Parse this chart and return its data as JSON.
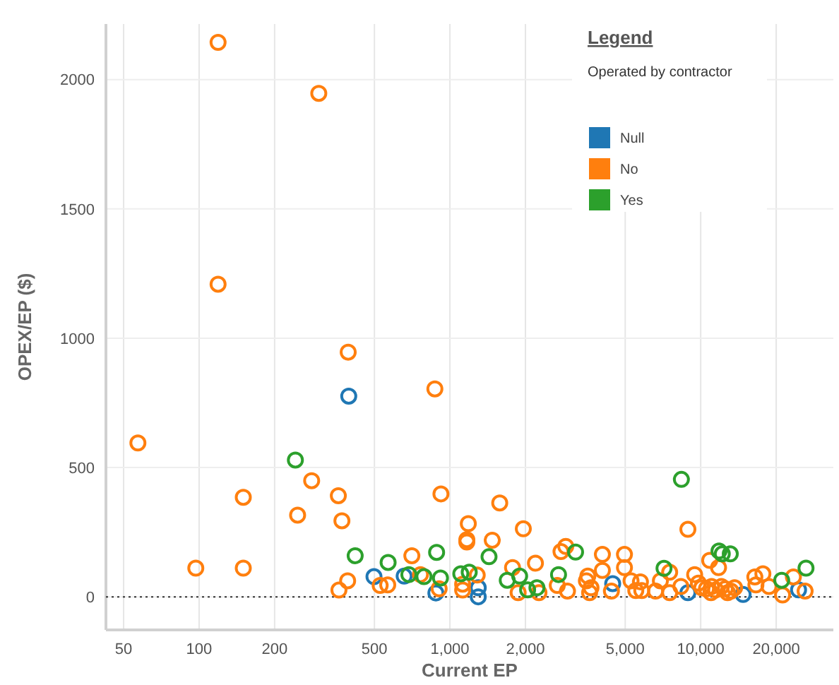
{
  "chart_data": {
    "type": "scatter",
    "xlabel": "Current EP",
    "ylabel": "OPEX/EP ($)",
    "legend_title": "Operated by contractor",
    "annotations": [
      "Legend"
    ],
    "log": "x",
    "grid": true,
    "legend": "top right",
    "marker": "circle",
    "xlim": [
      42.5,
      33800
    ],
    "ylim": [
      -128,
      2215
    ],
    "xticks": [
      50,
      100,
      200,
      500,
      {
        "value": 1000,
        "label": "1,000"
      },
      {
        "value": 2000,
        "label": "2,000"
      },
      {
        "value": 5000,
        "label": "5,000"
      },
      {
        "value": 10000,
        "label": "10,000"
      },
      {
        "value": 20000,
        "label": "20,000"
      }
    ],
    "yticks": [
      0,
      500,
      1000,
      1500,
      2000
    ],
    "ref_lines": [
      {
        "axis": "y",
        "value": 0,
        "label": null,
        "color": "#333333",
        "line_style": "dotted"
      }
    ],
    "series": [
      {
        "name": "Null",
        "color": "#1f77b4",
        "x": [
          395,
          498,
          657,
          879,
          1297,
          1297,
          4457,
          8890,
          14760,
          24560
        ],
        "values": [
          776,
          78,
          80,
          15,
          35,
          0,
          51,
          16,
          9,
          27
        ]
      },
      {
        "name": "No",
        "color": "#ff7f0e",
        "x": [
          119,
          300,
          119,
          393,
          871,
          57,
          281,
          150,
          359,
          247,
          371,
          97,
          150,
          705,
          921,
          391,
          361,
          527,
          565,
          763,
          906,
          1580,
          1184,
          1168,
          1168,
          1475,
          1962,
          8890,
          2193,
          1777,
          2773,
          2897,
          4055,
          4966,
          4966,
          4055,
          3548,
          10860,
          11780,
          9460,
          7520,
          1285,
          2680,
          2943,
          3501,
          3652,
          3606,
          1124,
          1124,
          1871,
          2265,
          4405,
          5275,
          5750,
          5822,
          5510,
          6607,
          6906,
          7520,
          8337,
          9790,
          10090,
          10540,
          11050,
          11480,
          12090,
          12530,
          13200,
          13650,
          10990,
          12800,
          16440,
          17700,
          18720,
          16600,
          21200,
          23420,
          26080
        ],
        "values": [
          2144,
          1947,
          1209,
          946,
          804,
          595,
          449,
          385,
          391,
          316,
          294,
          111,
          111,
          159,
          398,
          62,
          26,
          44,
          46,
          86,
          31,
          363,
          283,
          221,
          212,
          219,
          263,
          261,
          130,
          113,
          175,
          195,
          164,
          164,
          113,
          102,
          80,
          141,
          113,
          86,
          95,
          84,
          44,
          22,
          62,
          35,
          16,
          49,
          26,
          16,
          16,
          22,
          62,
          58,
          24,
          24,
          22,
          62,
          16,
          40,
          53,
          35,
          31,
          40,
          27,
          40,
          31,
          22,
          35,
          16,
          16,
          77,
          89,
          40,
          46,
          7,
          77,
          22
        ]
      },
      {
        "name": "Yes",
        "color": "#2ca02c",
        "x": [
          242,
          419,
          567,
          885,
          686,
          788,
          917,
          8375,
          1432,
          3170,
          11830,
          12190,
          13120,
          7140,
          1105,
          1194,
          1693,
          1897,
          2711,
          2041,
          2223,
          21040,
          26300
        ],
        "values": [
          529,
          159,
          133,
          172,
          86,
          78,
          73,
          454,
          155,
          173,
          177,
          166,
          166,
          110,
          89,
          95,
          64,
          80,
          86,
          27,
          35,
          64,
          111
        ]
      }
    ]
  }
}
